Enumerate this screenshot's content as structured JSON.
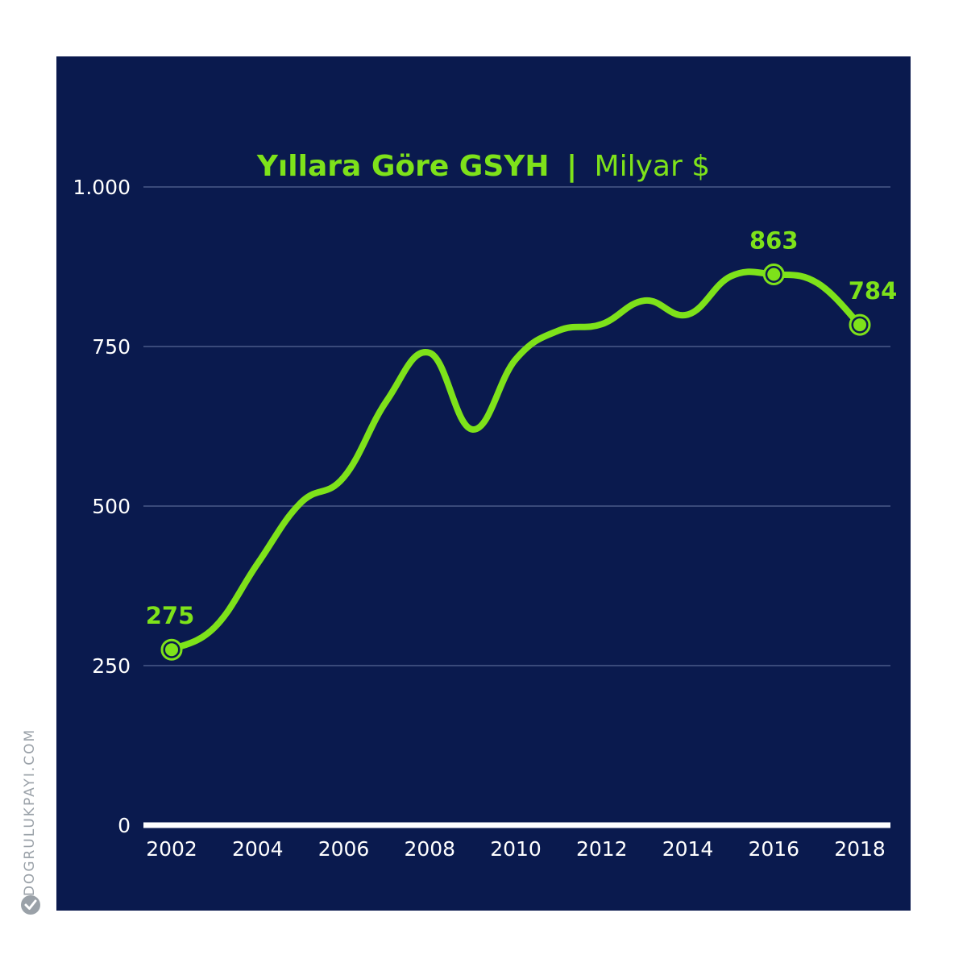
{
  "colors": {
    "background": "#0a1a4e",
    "line": "#7ee21a",
    "grid": "#4a5a88",
    "axis": "#ffffff",
    "watermark": "#9aa1a8"
  },
  "watermark": {
    "text": "DOGRULUKPAYI.COM",
    "logo_icon": "dogrulukpayi-logo-icon"
  },
  "chart_data": {
    "type": "line",
    "title": "Yıllara Göre GSYH",
    "title_separator": "|",
    "subtitle": "Milyar $",
    "xlabel": "",
    "ylabel": "",
    "xlim": [
      2002,
      2018
    ],
    "ylim": [
      0,
      1000
    ],
    "grid": true,
    "x_ticks": [
      2002,
      2004,
      2006,
      2008,
      2010,
      2012,
      2014,
      2016,
      2018
    ],
    "x_tick_labels": [
      "2002",
      "2004",
      "2006",
      "2008",
      "2010",
      "2012",
      "2014",
      "2016",
      "2018"
    ],
    "y_ticks": [
      0,
      250,
      500,
      750,
      1000
    ],
    "y_tick_labels": [
      "0",
      "250",
      "500",
      "750",
      "1.000"
    ],
    "series": [
      {
        "x": [
          2002,
          2003,
          2004,
          2005,
          2006,
          2007,
          2008,
          2009,
          2010,
          2011,
          2012,
          2013,
          2014,
          2015,
          2016,
          2017,
          2018
        ],
        "values": [
          275,
          310,
          410,
          505,
          545,
          665,
          740,
          620,
          730,
          775,
          785,
          822,
          800,
          860,
          863,
          850,
          784
        ]
      }
    ],
    "annotations": [
      {
        "x": 2002,
        "value": 275,
        "label": "275"
      },
      {
        "x": 2016,
        "value": 863,
        "label": "863"
      },
      {
        "x": 2018,
        "value": 784,
        "label": "784"
      }
    ]
  }
}
